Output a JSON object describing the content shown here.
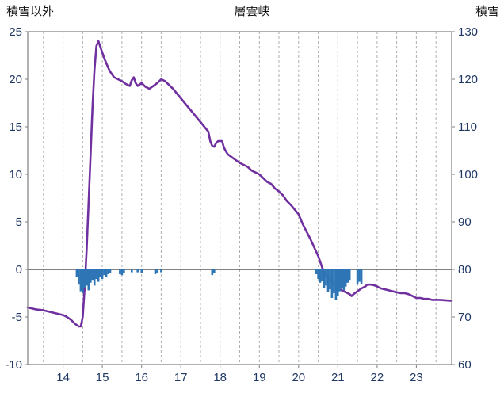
{
  "titles": {
    "left": "積雪以外",
    "center": "層雲峡",
    "right": "積雪"
  },
  "colors": {
    "line": "#7030A0",
    "bars": "#2E75B6",
    "tick_text": "#1F3864",
    "title_text": "#111111",
    "frame": "#808080",
    "grid": "#ADADAD",
    "zero_line": "#595959",
    "background": "#FFFFFF"
  },
  "chart_data": {
    "type": "line",
    "title": "層雲峡",
    "x_axis": {
      "min": 13.1,
      "max": 23.9,
      "tick_values": [
        14,
        15,
        16,
        17,
        18,
        19,
        20,
        21,
        22,
        23
      ],
      "grid_start": 13.5,
      "grid_step": 0.5,
      "grid_end": 23.5
    },
    "left_axis": {
      "label": "積雪以外",
      "min": -10,
      "max": 25,
      "tick_values": [
        -10,
        -5,
        0,
        5,
        10,
        15,
        20,
        25
      ]
    },
    "right_axis": {
      "label": "積雪",
      "min": 60,
      "max": 130,
      "tick_values": [
        60,
        70,
        80,
        90,
        100,
        110,
        120,
        130
      ]
    },
    "zero_line_left_value": 0,
    "legend": "off",
    "grid": "vertical-dashed",
    "series": [
      {
        "name": "snow-depth-line",
        "type": "line",
        "axis": "left",
        "color": "#7030A0",
        "points": [
          [
            13.1,
            -4
          ],
          [
            13.3,
            -4.2
          ],
          [
            13.5,
            -4.3
          ],
          [
            13.7,
            -4.5
          ],
          [
            13.9,
            -4.7
          ],
          [
            14,
            -4.8
          ],
          [
            14.1,
            -5
          ],
          [
            14.2,
            -5.3
          ],
          [
            14.3,
            -5.7
          ],
          [
            14.4,
            -6
          ],
          [
            14.45,
            -6
          ],
          [
            14.5,
            -5
          ],
          [
            14.55,
            -2
          ],
          [
            14.6,
            2
          ],
          [
            14.65,
            7
          ],
          [
            14.7,
            12
          ],
          [
            14.75,
            17
          ],
          [
            14.8,
            21
          ],
          [
            14.85,
            23.5
          ],
          [
            14.9,
            24
          ],
          [
            14.95,
            23.4
          ],
          [
            15,
            22.8
          ],
          [
            15.05,
            22.2
          ],
          [
            15.1,
            21.7
          ],
          [
            15.15,
            21.2
          ],
          [
            15.2,
            20.8
          ],
          [
            15.3,
            20.2
          ],
          [
            15.4,
            20
          ],
          [
            15.5,
            19.8
          ],
          [
            15.6,
            19.5
          ],
          [
            15.7,
            19.3
          ],
          [
            15.75,
            19.9
          ],
          [
            15.8,
            20.2
          ],
          [
            15.85,
            19.6
          ],
          [
            15.9,
            19.3
          ],
          [
            16,
            19.6
          ],
          [
            16.1,
            19.2
          ],
          [
            16.2,
            19
          ],
          [
            16.3,
            19.3
          ],
          [
            16.4,
            19.6
          ],
          [
            16.5,
            20
          ],
          [
            16.6,
            19.8
          ],
          [
            16.7,
            19.4
          ],
          [
            16.8,
            19
          ],
          [
            16.9,
            18.5
          ],
          [
            17,
            18
          ],
          [
            17.1,
            17.5
          ],
          [
            17.2,
            17
          ],
          [
            17.3,
            16.5
          ],
          [
            17.4,
            16
          ],
          [
            17.5,
            15.5
          ],
          [
            17.6,
            15
          ],
          [
            17.7,
            14.5
          ],
          [
            17.75,
            13.5
          ],
          [
            17.8,
            13
          ],
          [
            17.85,
            12.9
          ],
          [
            17.9,
            13.3
          ],
          [
            17.95,
            13.5
          ],
          [
            18.05,
            13.5
          ],
          [
            18.1,
            12.8
          ],
          [
            18.15,
            12.4
          ],
          [
            18.2,
            12.1
          ],
          [
            18.3,
            11.8
          ],
          [
            18.4,
            11.5
          ],
          [
            18.5,
            11.2
          ],
          [
            18.6,
            11
          ],
          [
            18.7,
            10.8
          ],
          [
            18.8,
            10.4
          ],
          [
            18.9,
            10.2
          ],
          [
            19,
            10
          ],
          [
            19.1,
            9.6
          ],
          [
            19.2,
            9.2
          ],
          [
            19.3,
            9
          ],
          [
            19.4,
            8.5
          ],
          [
            19.5,
            8.2
          ],
          [
            19.6,
            7.8
          ],
          [
            19.7,
            7.2
          ],
          [
            19.8,
            6.8
          ],
          [
            19.9,
            6.3
          ],
          [
            20,
            5.8
          ],
          [
            20.1,
            4.8
          ],
          [
            20.2,
            4
          ],
          [
            20.3,
            3.2
          ],
          [
            20.4,
            2.3
          ],
          [
            20.5,
            1.4
          ],
          [
            20.55,
            0.8
          ],
          [
            20.6,
            0.2
          ],
          [
            20.7,
            -0.6
          ],
          [
            20.8,
            -1
          ],
          [
            20.9,
            -1.5
          ],
          [
            21,
            -1.9
          ],
          [
            21.1,
            -2.2
          ],
          [
            21.2,
            -2.4
          ],
          [
            21.3,
            -2.6
          ],
          [
            21.35,
            -2.8
          ],
          [
            21.4,
            -2.6
          ],
          [
            21.5,
            -2.3
          ],
          [
            21.6,
            -2
          ],
          [
            21.7,
            -1.8
          ],
          [
            21.75,
            -1.6
          ],
          [
            21.85,
            -1.6
          ],
          [
            21.95,
            -1.7
          ],
          [
            22,
            -1.8
          ],
          [
            22.1,
            -2
          ],
          [
            22.2,
            -2.1
          ],
          [
            22.3,
            -2.2
          ],
          [
            22.4,
            -2.3
          ],
          [
            22.5,
            -2.4
          ],
          [
            22.6,
            -2.5
          ],
          [
            22.7,
            -2.5
          ],
          [
            22.8,
            -2.6
          ],
          [
            22.9,
            -2.8
          ],
          [
            23,
            -3
          ],
          [
            23.1,
            -3
          ],
          [
            23.2,
            -3.1
          ],
          [
            23.3,
            -3.1
          ],
          [
            23.4,
            -3.2
          ],
          [
            23.6,
            -3.2
          ],
          [
            23.9,
            -3.3
          ]
        ]
      },
      {
        "name": "precip-bars",
        "type": "bar",
        "axis": "left",
        "color": "#2E75B6",
        "points": [
          [
            14.35,
            -0.8
          ],
          [
            14.4,
            -1.6
          ],
          [
            14.45,
            -2.3
          ],
          [
            14.5,
            -2.5
          ],
          [
            14.55,
            -2
          ],
          [
            14.6,
            -1.7
          ],
          [
            14.65,
            -2.2
          ],
          [
            14.7,
            -1.4
          ],
          [
            14.75,
            -1.1
          ],
          [
            14.8,
            -1.7
          ],
          [
            14.85,
            -1
          ],
          [
            14.9,
            -1.3
          ],
          [
            14.95,
            -0.8
          ],
          [
            15,
            -1
          ],
          [
            15.05,
            -0.6
          ],
          [
            15.1,
            -0.8
          ],
          [
            15.15,
            -0.5
          ],
          [
            15.2,
            -0.4
          ],
          [
            15.45,
            -0.5
          ],
          [
            15.5,
            -0.6
          ],
          [
            15.55,
            -0.4
          ],
          [
            15.75,
            -0.3
          ],
          [
            15.9,
            -0.3
          ],
          [
            16,
            -0.4
          ],
          [
            16.35,
            -0.5
          ],
          [
            16.4,
            -0.4
          ],
          [
            16.5,
            -0.3
          ],
          [
            17.8,
            -0.6
          ],
          [
            17.85,
            -0.4
          ],
          [
            20.45,
            -0.5
          ],
          [
            20.5,
            -1
          ],
          [
            20.55,
            -1.4
          ],
          [
            20.6,
            -1.2
          ],
          [
            20.65,
            -2
          ],
          [
            20.7,
            -1.7
          ],
          [
            20.75,
            -2.4
          ],
          [
            20.8,
            -2.1
          ],
          [
            20.85,
            -3
          ],
          [
            20.9,
            -2.5
          ],
          [
            20.95,
            -3.2
          ],
          [
            21,
            -2.8
          ],
          [
            21.05,
            -2.3
          ],
          [
            21.1,
            -2
          ],
          [
            21.15,
            -2.2
          ],
          [
            21.2,
            -1.8
          ],
          [
            21.25,
            -1.4
          ],
          [
            21.3,
            -1.1
          ],
          [
            21.5,
            -1.6
          ],
          [
            21.55,
            -1.3
          ],
          [
            21.6,
            -1.5
          ]
        ]
      }
    ]
  }
}
